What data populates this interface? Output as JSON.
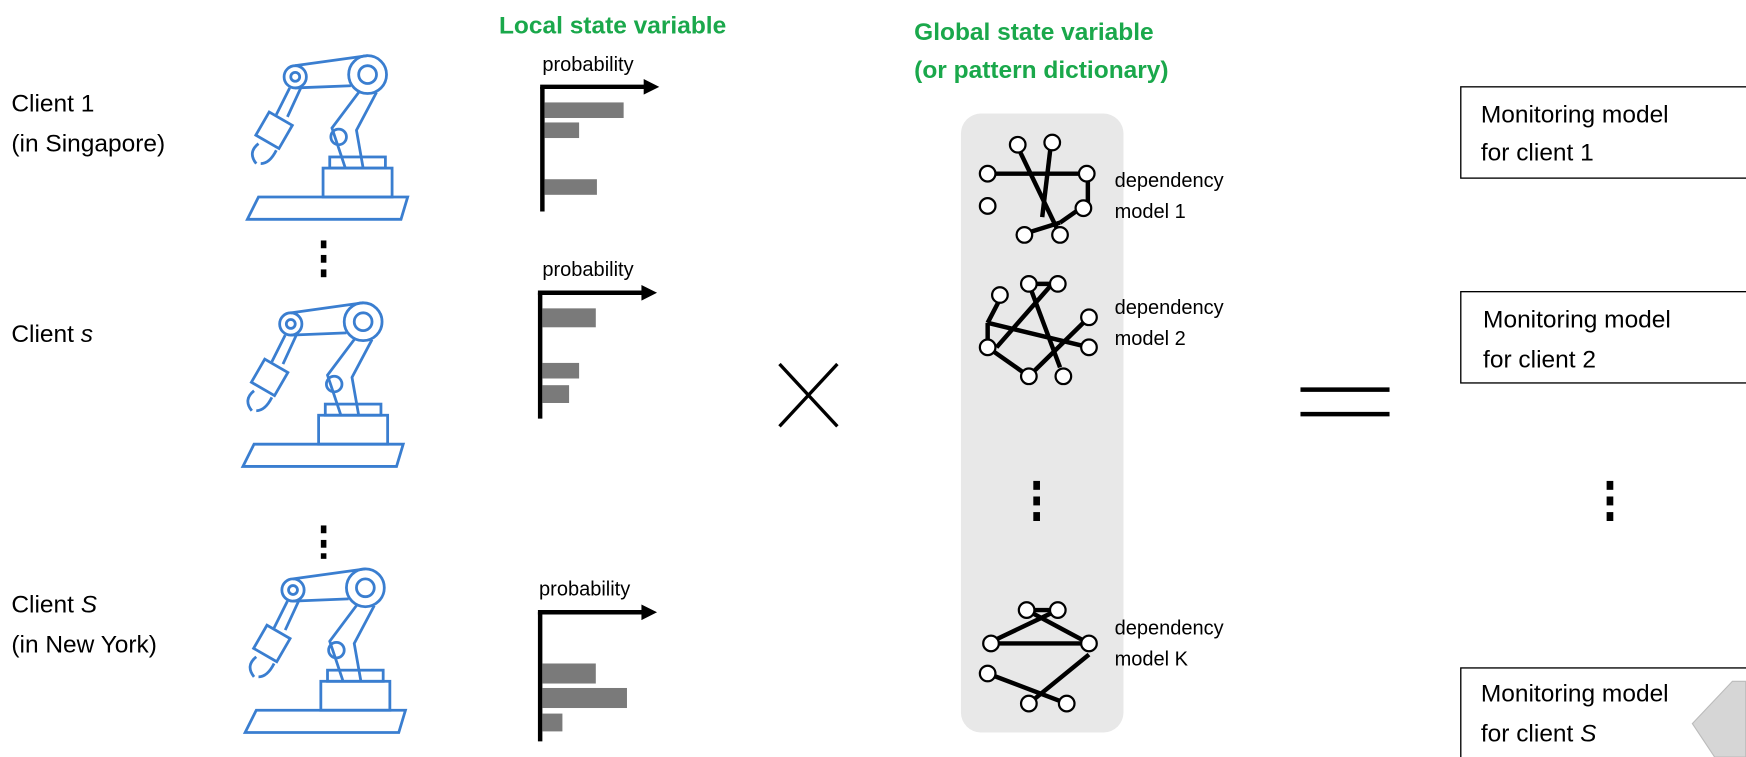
{
  "clients": [
    {
      "lines": [
        "Client 1",
        "(in Singapore)"
      ]
    },
    {
      "label": "Client",
      "variable": "s"
    },
    {
      "label": "Client",
      "variable": "S",
      "line2": "(in New York)"
    }
  ],
  "local_state": {
    "title": "Local state variable",
    "axis_labels": [
      "probability",
      "probability",
      "probability"
    ]
  },
  "global_state": {
    "title_lines": [
      "Global state variable",
      "(or pattern dictionary)"
    ],
    "models": [
      [
        "dependency",
        "model 1"
      ],
      [
        "dependency",
        "model 2"
      ],
      [
        "dependency",
        "model K"
      ]
    ]
  },
  "outputs": [
    [
      "Monitoring model",
      "for client 1"
    ],
    [
      "Monitoring model",
      "for client 2"
    ],
    {
      "line1": "Monitoring model",
      "line2_label": "for client",
      "line2_variable": "S"
    }
  ]
}
